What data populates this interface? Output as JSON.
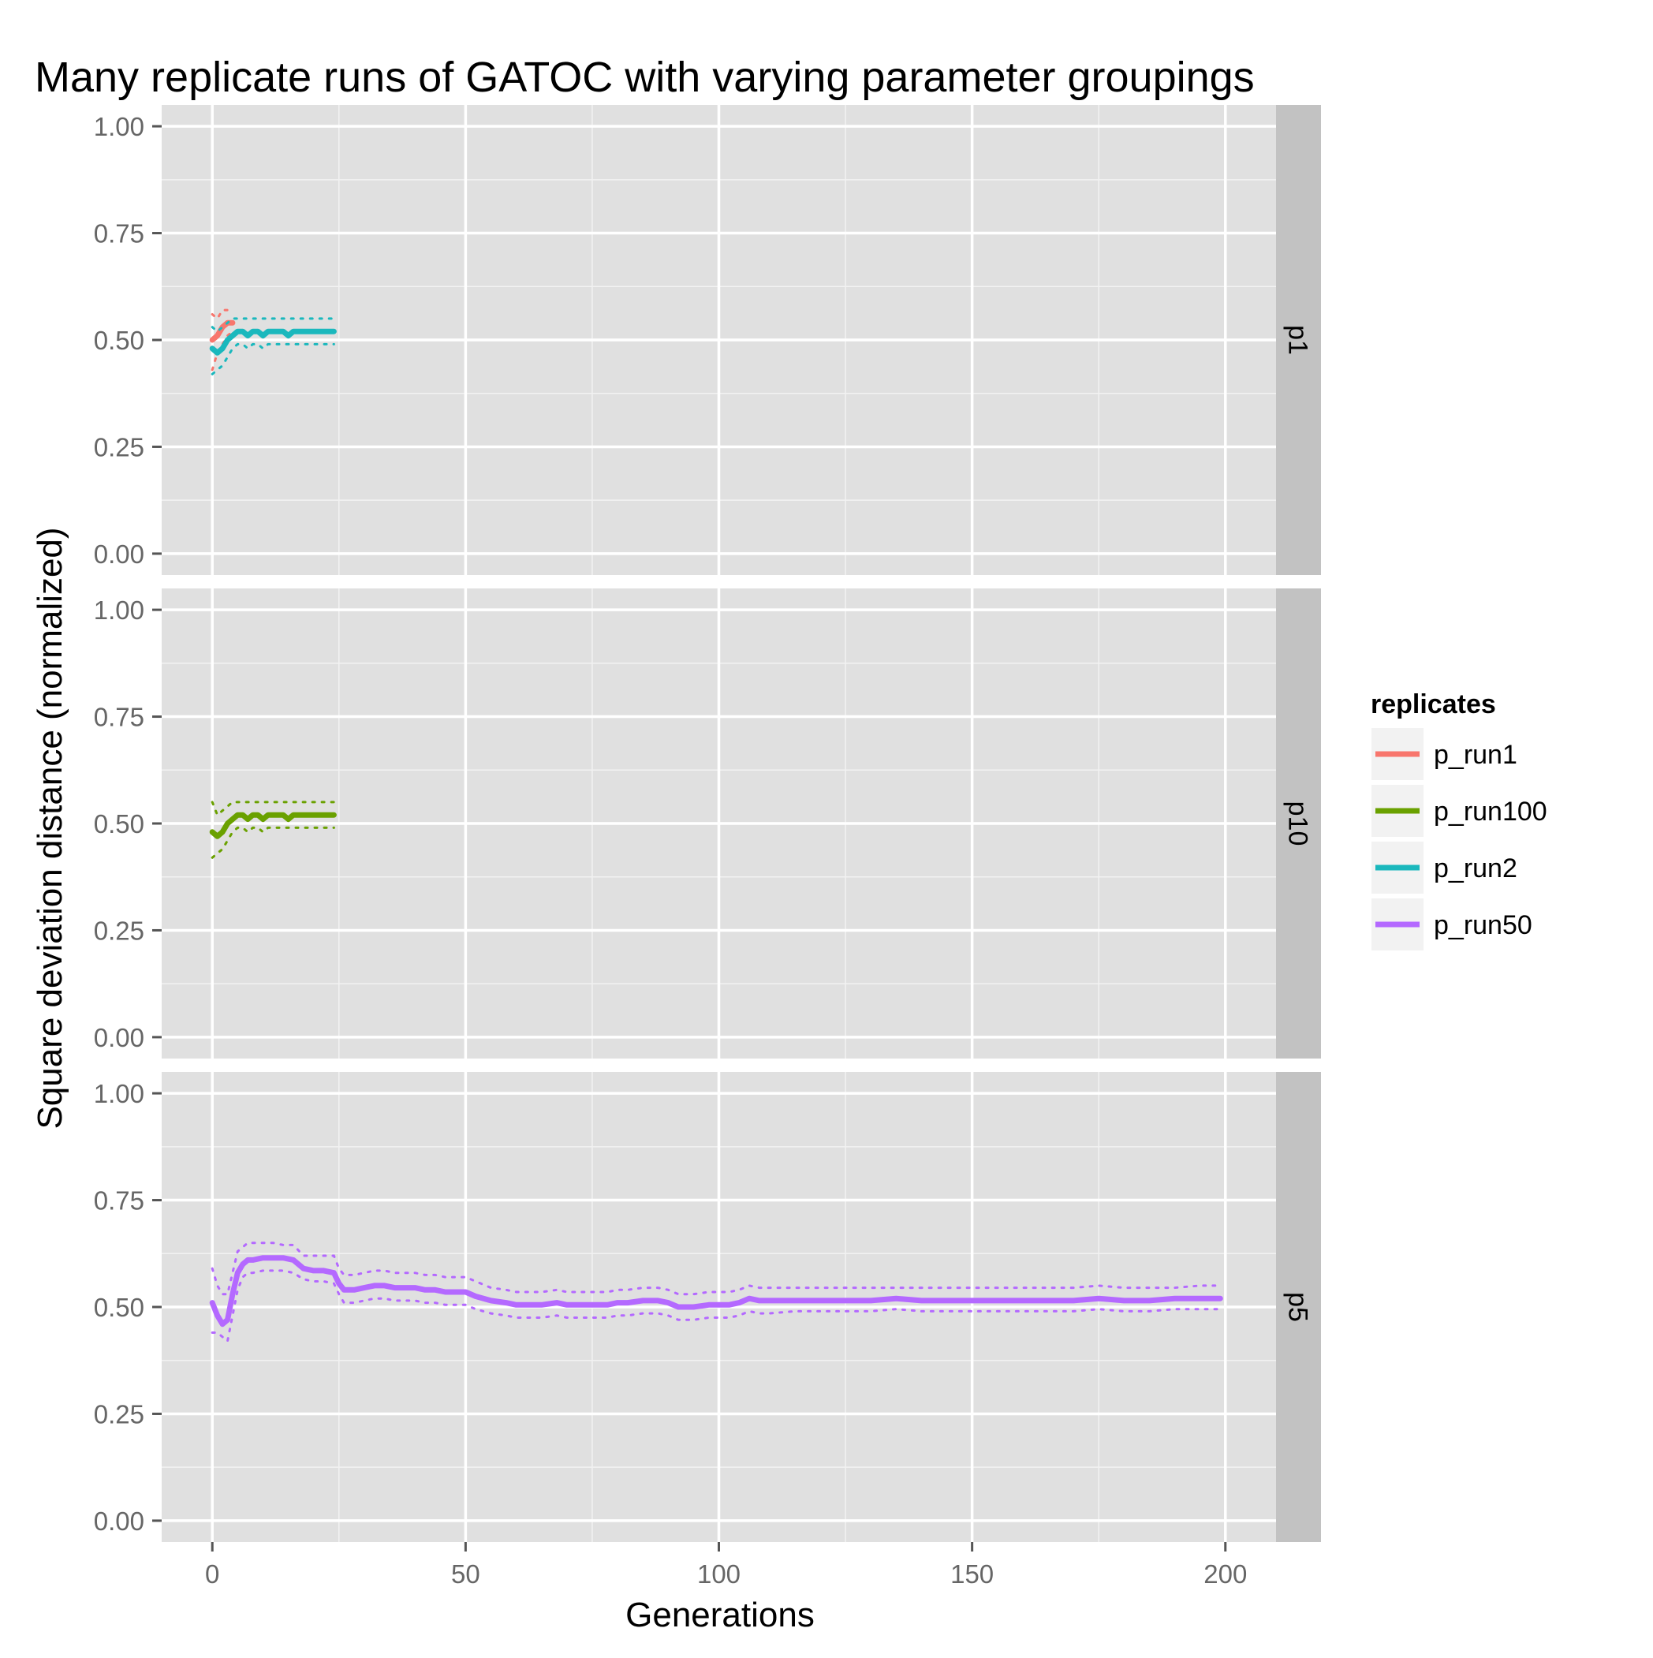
{
  "chart_data": {
    "type": "line",
    "title": "Many replicate runs of GATOC with varying parameter groupings",
    "xlabel": "Generations",
    "ylabel": "Square deviation distance (normalized)",
    "xlim": [
      -10,
      210
    ],
    "ylim": [
      -0.05,
      1.05
    ],
    "x_ticks": [
      0,
      50,
      100,
      150,
      200
    ],
    "x_tick_labels": [
      "0",
      "50",
      "100",
      "150",
      "200"
    ],
    "y_ticks": [
      0,
      0.25,
      0.5,
      0.75,
      1
    ],
    "y_tick_labels": [
      "0.00",
      "0.25",
      "0.50",
      "0.75",
      "1.00"
    ],
    "grid": true,
    "panel_background": "#e0e0e0",
    "strip_background": "#c2c2c2",
    "legend": {
      "title": "replicates",
      "position": "right",
      "entries": [
        {
          "label": "p_run1",
          "color": "#f8766d"
        },
        {
          "label": "p_run100",
          "color": "#6aa100"
        },
        {
          "label": "p_run2",
          "color": "#1bb8bd"
        },
        {
          "label": "p_run50",
          "color": "#b469ff"
        }
      ]
    },
    "panels": [
      {
        "strip_label": "p1",
        "series": [
          {
            "name": "p_run1",
            "color": "#f8766d",
            "x": [
              0,
              1,
              2,
              3,
              4
            ],
            "y": [
              0.5,
              0.51,
              0.53,
              0.54,
              0.54
            ],
            "upper": [
              0.56,
              0.55,
              0.57,
              0.57,
              0.56
            ],
            "lower": [
              0.43,
              0.47,
              0.49,
              0.51,
              0.52
            ]
          },
          {
            "name": "p_run2",
            "color": "#1bb8bd",
            "x": [
              0,
              1,
              2,
              3,
              4,
              5,
              6,
              7,
              8,
              9,
              10,
              11,
              12,
              13,
              14,
              15,
              16,
              17,
              18,
              19,
              20,
              21,
              22,
              23,
              24
            ],
            "y": [
              0.48,
              0.47,
              0.48,
              0.5,
              0.51,
              0.52,
              0.52,
              0.51,
              0.52,
              0.52,
              0.51,
              0.52,
              0.52,
              0.52,
              0.52,
              0.51,
              0.52,
              0.52,
              0.52,
              0.52,
              0.52,
              0.52,
              0.52,
              0.52,
              0.52
            ],
            "upper": [
              0.53,
              0.52,
              0.53,
              0.54,
              0.55,
              0.55,
              0.55,
              0.55,
              0.55,
              0.55,
              0.55,
              0.55,
              0.55,
              0.55,
              0.55,
              0.55,
              0.55,
              0.55,
              0.55,
              0.55,
              0.55,
              0.55,
              0.55,
              0.55,
              0.55
            ],
            "lower": [
              0.42,
              0.43,
              0.44,
              0.46,
              0.48,
              0.49,
              0.49,
              0.48,
              0.49,
              0.49,
              0.48,
              0.49,
              0.49,
              0.49,
              0.49,
              0.49,
              0.49,
              0.49,
              0.49,
              0.49,
              0.49,
              0.49,
              0.49,
              0.49,
              0.49
            ]
          }
        ]
      },
      {
        "strip_label": "p10",
        "series": [
          {
            "name": "p_run100",
            "color": "#6aa100",
            "x": [
              0,
              1,
              2,
              3,
              4,
              5,
              6,
              7,
              8,
              9,
              10,
              11,
              12,
              13,
              14,
              15,
              16,
              17,
              18,
              19,
              20,
              21,
              22,
              23,
              24
            ],
            "y": [
              0.48,
              0.47,
              0.48,
              0.5,
              0.51,
              0.52,
              0.52,
              0.51,
              0.52,
              0.52,
              0.51,
              0.52,
              0.52,
              0.52,
              0.52,
              0.51,
              0.52,
              0.52,
              0.52,
              0.52,
              0.52,
              0.52,
              0.52,
              0.52,
              0.52
            ],
            "upper": [
              0.55,
              0.52,
              0.53,
              0.54,
              0.55,
              0.55,
              0.55,
              0.55,
              0.55,
              0.55,
              0.55,
              0.55,
              0.55,
              0.55,
              0.55,
              0.55,
              0.55,
              0.55,
              0.55,
              0.55,
              0.55,
              0.55,
              0.55,
              0.55,
              0.55
            ],
            "lower": [
              0.42,
              0.43,
              0.44,
              0.46,
              0.48,
              0.49,
              0.49,
              0.48,
              0.49,
              0.49,
              0.48,
              0.49,
              0.49,
              0.49,
              0.49,
              0.49,
              0.49,
              0.49,
              0.49,
              0.49,
              0.49,
              0.49,
              0.49,
              0.49,
              0.49
            ]
          }
        ]
      },
      {
        "strip_label": "p5",
        "series": [
          {
            "name": "p_run50",
            "color": "#b469ff",
            "x": [
              0,
              1,
              2,
              3,
              4,
              5,
              6,
              7,
              8,
              10,
              12,
              14,
              16,
              18,
              20,
              22,
              24,
              25,
              26,
              28,
              30,
              32,
              34,
              36,
              38,
              40,
              42,
              44,
              46,
              48,
              50,
              52,
              55,
              58,
              60,
              62,
              65,
              68,
              70,
              72,
              75,
              78,
              80,
              82,
              85,
              88,
              90,
              92,
              95,
              98,
              100,
              102,
              104,
              106,
              108,
              110,
              115,
              120,
              125,
              130,
              135,
              140,
              145,
              150,
              155,
              160,
              165,
              170,
              175,
              180,
              185,
              190,
              195,
              199
            ],
            "y": [
              0.51,
              0.48,
              0.46,
              0.47,
              0.53,
              0.58,
              0.6,
              0.61,
              0.61,
              0.615,
              0.615,
              0.615,
              0.61,
              0.59,
              0.585,
              0.585,
              0.58,
              0.555,
              0.54,
              0.54,
              0.545,
              0.55,
              0.55,
              0.545,
              0.545,
              0.545,
              0.54,
              0.54,
              0.535,
              0.535,
              0.535,
              0.525,
              0.515,
              0.51,
              0.505,
              0.505,
              0.505,
              0.51,
              0.505,
              0.505,
              0.505,
              0.505,
              0.51,
              0.51,
              0.515,
              0.515,
              0.51,
              0.5,
              0.5,
              0.505,
              0.505,
              0.505,
              0.51,
              0.52,
              0.515,
              0.515,
              0.515,
              0.515,
              0.515,
              0.515,
              0.52,
              0.515,
              0.515,
              0.515,
              0.515,
              0.515,
              0.515,
              0.515,
              0.52,
              0.515,
              0.515,
              0.52,
              0.52,
              0.52
            ],
            "upper": [
              0.59,
              0.55,
              0.53,
              0.53,
              0.58,
              0.63,
              0.64,
              0.65,
              0.65,
              0.65,
              0.65,
              0.645,
              0.645,
              0.62,
              0.62,
              0.62,
              0.62,
              0.59,
              0.575,
              0.575,
              0.58,
              0.585,
              0.585,
              0.58,
              0.58,
              0.58,
              0.575,
              0.575,
              0.57,
              0.57,
              0.57,
              0.56,
              0.545,
              0.54,
              0.535,
              0.535,
              0.535,
              0.54,
              0.535,
              0.535,
              0.535,
              0.535,
              0.54,
              0.54,
              0.545,
              0.545,
              0.54,
              0.53,
              0.53,
              0.535,
              0.535,
              0.535,
              0.54,
              0.55,
              0.545,
              0.545,
              0.545,
              0.545,
              0.545,
              0.545,
              0.545,
              0.545,
              0.545,
              0.545,
              0.545,
              0.545,
              0.545,
              0.545,
              0.55,
              0.545,
              0.545,
              0.545,
              0.55,
              0.55
            ],
            "lower": [
              0.44,
              0.44,
              0.43,
              0.42,
              0.48,
              0.54,
              0.57,
              0.58,
              0.58,
              0.585,
              0.585,
              0.585,
              0.58,
              0.565,
              0.56,
              0.56,
              0.555,
              0.53,
              0.51,
              0.51,
              0.515,
              0.52,
              0.52,
              0.515,
              0.515,
              0.515,
              0.51,
              0.51,
              0.505,
              0.505,
              0.505,
              0.495,
              0.485,
              0.48,
              0.475,
              0.475,
              0.475,
              0.48,
              0.475,
              0.475,
              0.475,
              0.475,
              0.48,
              0.48,
              0.485,
              0.485,
              0.48,
              0.47,
              0.47,
              0.475,
              0.475,
              0.475,
              0.48,
              0.49,
              0.485,
              0.485,
              0.49,
              0.49,
              0.49,
              0.49,
              0.495,
              0.49,
              0.49,
              0.49,
              0.49,
              0.49,
              0.49,
              0.49,
              0.495,
              0.49,
              0.49,
              0.495,
              0.495,
              0.495
            ]
          }
        ]
      }
    ]
  }
}
